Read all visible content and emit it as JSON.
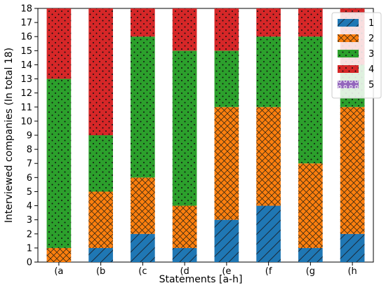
{
  "chart_data": {
    "type": "bar",
    "stacked": true,
    "categories": [
      "(a",
      "(b",
      "(c",
      "(d",
      "(e",
      "(f",
      "(g",
      "(h"
    ],
    "series": [
      {
        "name": "1",
        "values": [
          0,
          1,
          2,
          1,
          3,
          4,
          1,
          2
        ],
        "color": "#1f77b4",
        "hatch": "diagonal"
      },
      {
        "name": "2",
        "values": [
          1,
          4,
          4,
          3,
          8,
          7,
          6,
          9
        ],
        "color": "#ff7f0e",
        "hatch": "crosshatch"
      },
      {
        "name": "3",
        "values": [
          12,
          4,
          10,
          11,
          4,
          5,
          9,
          3
        ],
        "color": "#2ca02c",
        "hatch": "dots"
      },
      {
        "name": "4",
        "values": [
          5,
          9,
          2,
          3,
          3,
          2,
          2,
          4
        ],
        "color": "#d62728",
        "hatch": "dots"
      },
      {
        "name": "5",
        "values": [
          0,
          0,
          0,
          0,
          0,
          0,
          0,
          0
        ],
        "color": "#9467bd",
        "hatch": "circles"
      }
    ],
    "xlabel": "Statements [a-h]",
    "ylabel": "Interviewed companies (In total 18)",
    "ylim": [
      0,
      18
    ],
    "yticks": [
      "0",
      "1",
      "2",
      "3",
      "4",
      "5",
      "6",
      "7",
      "8",
      "9",
      "10",
      "11",
      "12",
      "13",
      "14",
      "15",
      "16",
      "17",
      "18"
    ],
    "grid": false,
    "legend_position": "top-right"
  }
}
